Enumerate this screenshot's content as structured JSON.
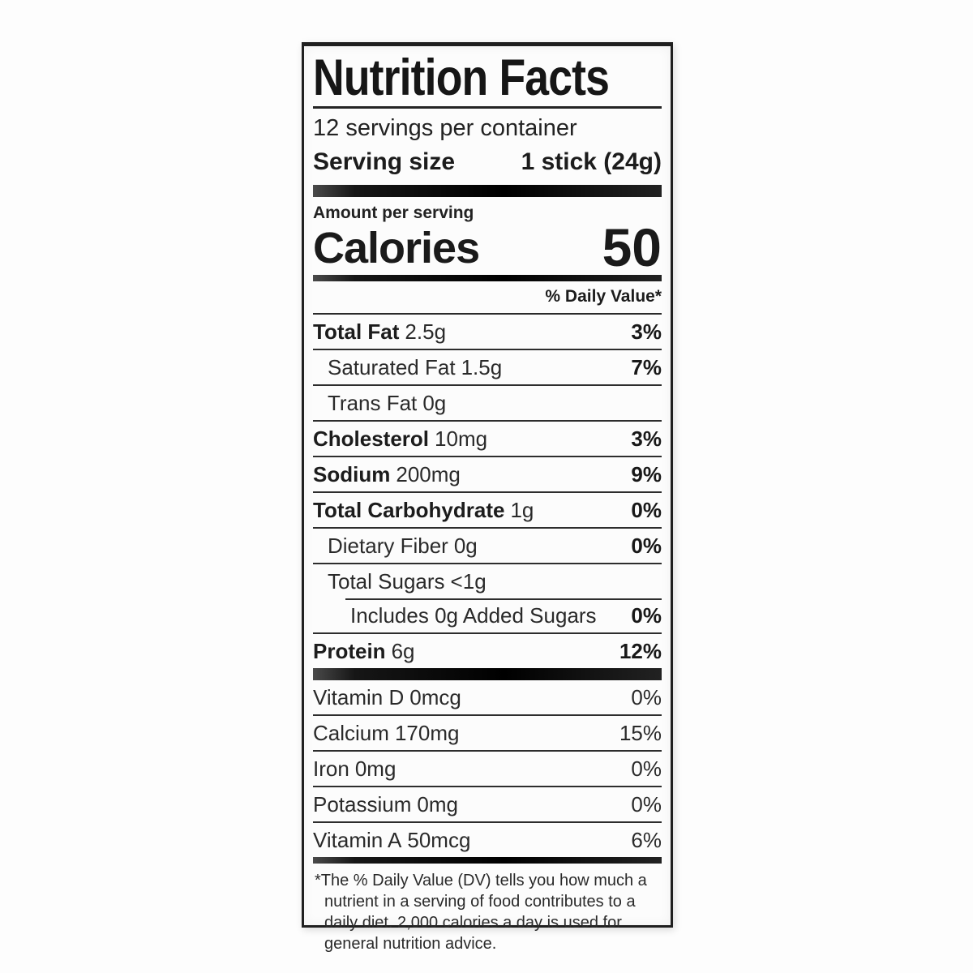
{
  "label": {
    "title": "Nutrition Facts",
    "servings_per_container": "12 servings per container",
    "serving_size": {
      "label": "Serving size",
      "value": "1 stick (24g)"
    },
    "amount_per_serving": "Amount per serving",
    "calories": {
      "label": "Calories",
      "value": "50"
    },
    "daily_value_header": "% Daily Value*",
    "nutrients": [
      {
        "name": "Total Fat",
        "amount": "2.5g",
        "dv": "3%"
      },
      {
        "name": "Saturated Fat",
        "amount": "1.5g",
        "dv": "7%"
      },
      {
        "name": "Trans Fat",
        "amount": "0g",
        "dv": ""
      },
      {
        "name": "Cholesterol",
        "amount": "10mg",
        "dv": "3%"
      },
      {
        "name": "Sodium",
        "amount": "200mg",
        "dv": "9%"
      },
      {
        "name": "Total Carbohydrate",
        "amount": "1g",
        "dv": "0%"
      },
      {
        "name": "Dietary Fiber",
        "amount": "0g",
        "dv": "0%"
      },
      {
        "name": "Total Sugars",
        "amount": "<1g",
        "dv": ""
      },
      {
        "name": "Includes 0g Added Sugars",
        "amount": "",
        "dv": "0%"
      },
      {
        "name": "Protein",
        "amount": "6g",
        "dv": "12%"
      }
    ],
    "vitamins": [
      {
        "name": "Vitamin D",
        "amount": "0mcg",
        "dv": "0%"
      },
      {
        "name": "Calcium",
        "amount": "170mg",
        "dv": "15%"
      },
      {
        "name": "Iron",
        "amount": "0mg",
        "dv": "0%"
      },
      {
        "name": "Potassium",
        "amount": "0mg",
        "dv": "0%"
      },
      {
        "name": "Vitamin A",
        "amount": "50mcg",
        "dv": "6%"
      }
    ],
    "footnote": "*The % Daily Value (DV) tells you how much a nutrient in a serving of food contributes to a daily diet. 2,000 calories a day is used for general nutrition advice."
  },
  "colors": {
    "text": "#1c1c1c",
    "bar": "#111111",
    "background": "#ffffff",
    "border": "#1f1f1f"
  }
}
